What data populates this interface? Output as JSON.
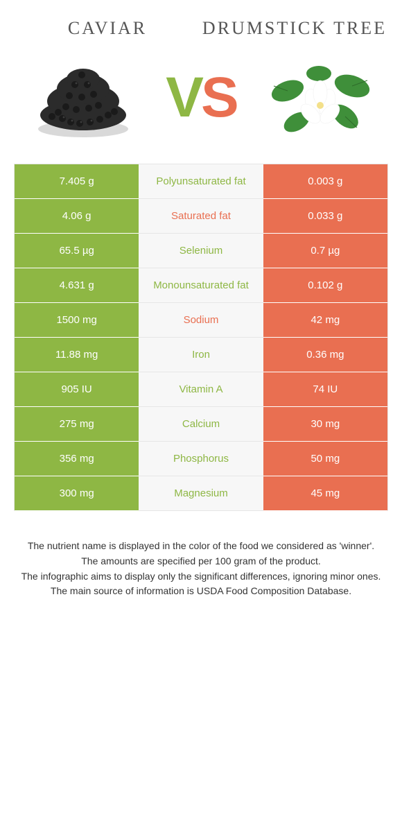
{
  "colors": {
    "left": "#8eb744",
    "right": "#e96f51",
    "mid_bg": "#f7f7f7",
    "border": "#e6e6e6",
    "header_text": "#555555",
    "footer_text": "#333333"
  },
  "header": {
    "left_title": "Caviar",
    "right_title": "Drumstick tree"
  },
  "vs": {
    "v": "V",
    "s": "S"
  },
  "rows": [
    {
      "left": "7.405 g",
      "label": "Polyunsaturated fat",
      "right": "0.003 g",
      "winner": "left"
    },
    {
      "left": "4.06 g",
      "label": "Saturated fat",
      "right": "0.033 g",
      "winner": "right"
    },
    {
      "left": "65.5 µg",
      "label": "Selenium",
      "right": "0.7 µg",
      "winner": "left"
    },
    {
      "left": "4.631 g",
      "label": "Monounsaturated fat",
      "right": "0.102 g",
      "winner": "left"
    },
    {
      "left": "1500 mg",
      "label": "Sodium",
      "right": "42 mg",
      "winner": "right"
    },
    {
      "left": "11.88 mg",
      "label": "Iron",
      "right": "0.36 mg",
      "winner": "left"
    },
    {
      "left": "905 IU",
      "label": "Vitamin A",
      "right": "74 IU",
      "winner": "left"
    },
    {
      "left": "275 mg",
      "label": "Calcium",
      "right": "30 mg",
      "winner": "left"
    },
    {
      "left": "356 mg",
      "label": "Phosphorus",
      "right": "50 mg",
      "winner": "left"
    },
    {
      "left": "300 mg",
      "label": "Magnesium",
      "right": "45 mg",
      "winner": "left"
    }
  ],
  "footer": {
    "l1": "The nutrient name is displayed in the color of the food we considered as 'winner'.",
    "l2": "The amounts are specified per 100 gram of the product.",
    "l3": "The infographic aims to display only the significant differences, ignoring minor ones.",
    "l4": "The main source of information is USDA Food Composition Database."
  }
}
